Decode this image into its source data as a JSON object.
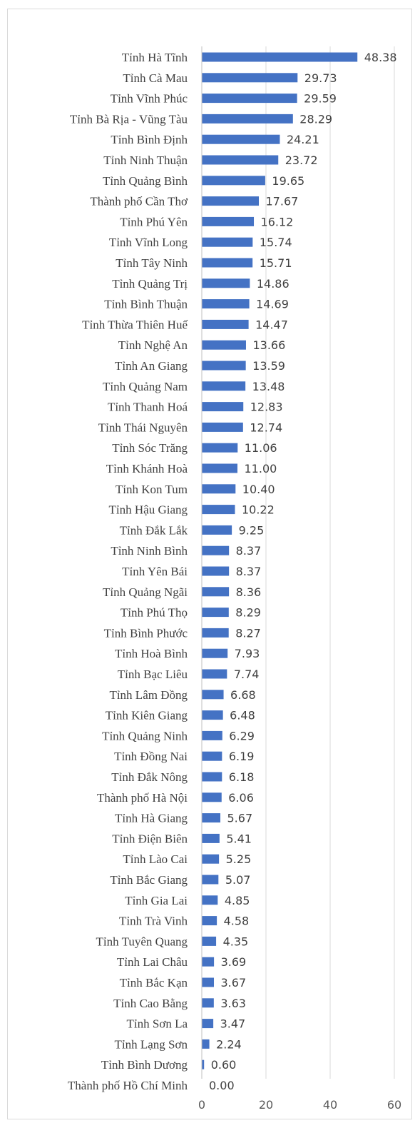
{
  "chart_data": {
    "type": "bar",
    "orientation": "horizontal",
    "categories": [
      "Tỉnh Hà Tĩnh",
      "Tỉnh Cà Mau",
      "Tỉnh Vĩnh Phúc",
      "Tỉnh Bà Rịa - Vũng Tàu",
      "Tỉnh Bình Định",
      "Tỉnh Ninh Thuận",
      "Tỉnh Quảng Bình",
      "Thành phố Cần Thơ",
      "Tỉnh Phú Yên",
      "Tỉnh Vĩnh Long",
      "Tỉnh Tây Ninh",
      "Tỉnh Quảng Trị",
      "Tỉnh Bình Thuận",
      "Tỉnh Thừa Thiên Huế",
      "Tỉnh Nghệ An",
      "Tỉnh An Giang",
      "Tỉnh Quảng Nam",
      "Tỉnh Thanh Hoá",
      "Tỉnh Thái Nguyên",
      "Tỉnh Sóc Trăng",
      "Tỉnh Khánh Hoà",
      "Tỉnh Kon Tum",
      "Tỉnh Hậu Giang",
      "Tỉnh Đắk Lắk",
      "Tỉnh Ninh Bình",
      "Tỉnh Yên Bái",
      "Tỉnh Quảng Ngãi",
      "Tỉnh Phú Thọ",
      "Tỉnh Bình Phước",
      "Tỉnh Hoà Bình",
      "Tỉnh Bạc Liêu",
      "Tỉnh Lâm Đồng",
      "Tỉnh Kiên Giang",
      "Tỉnh Quảng Ninh",
      "Tỉnh Đồng Nai",
      "Tỉnh Đắk Nông",
      "Thành phố Hà Nội",
      "Tỉnh Hà Giang",
      "Tỉnh Điện Biên",
      "Tỉnh Lào Cai",
      "Tỉnh Bắc Giang",
      "Tỉnh Gia Lai",
      "Tỉnh Trà Vinh",
      "Tỉnh Tuyên Quang",
      "Tỉnh Lai Châu",
      "Tỉnh Bắc Kạn",
      "Tỉnh Cao Bằng",
      "Tỉnh Sơn La",
      "Tỉnh Lạng Sơn",
      "Tỉnh Bình Dương",
      "Thành phố Hồ Chí Minh"
    ],
    "values": [
      48.38,
      29.73,
      29.59,
      28.29,
      24.21,
      23.72,
      19.65,
      17.67,
      16.12,
      15.74,
      15.71,
      14.86,
      14.69,
      14.47,
      13.66,
      13.59,
      13.48,
      12.83,
      12.74,
      11.06,
      11.0,
      10.4,
      10.22,
      9.25,
      8.37,
      8.37,
      8.36,
      8.29,
      8.27,
      7.93,
      7.74,
      6.68,
      6.48,
      6.29,
      6.19,
      6.18,
      6.06,
      5.67,
      5.41,
      5.25,
      5.07,
      4.85,
      4.58,
      4.35,
      3.69,
      3.67,
      3.63,
      3.47,
      2.24,
      0.6,
      0.0
    ],
    "value_labels": [
      "48.38",
      "29.73",
      "29.59",
      "28.29",
      "24.21",
      "23.72",
      "19.65",
      "17.67",
      "16.12",
      "15.74",
      "15.71",
      "14.86",
      "14.69",
      "14.47",
      "13.66",
      "13.59",
      "13.48",
      "12.83",
      "12.74",
      "11.06",
      "11.00",
      "10.40",
      "10.22",
      "9.25",
      "8.37",
      "8.37",
      "8.36",
      "8.29",
      "8.27",
      "7.93",
      "7.74",
      "6.68",
      "6.48",
      "6.29",
      "6.19",
      "6.18",
      "6.06",
      "5.67",
      "5.41",
      "5.25",
      "5.07",
      "4.85",
      "4.58",
      "4.35",
      "3.69",
      "3.67",
      "3.63",
      "3.47",
      "2.24",
      "0.60",
      "0.00"
    ],
    "xlim": [
      0,
      60
    ],
    "x_ticks": [
      "0",
      "20",
      "40",
      "60"
    ],
    "grid": true,
    "bar_color": "#4472c4"
  }
}
